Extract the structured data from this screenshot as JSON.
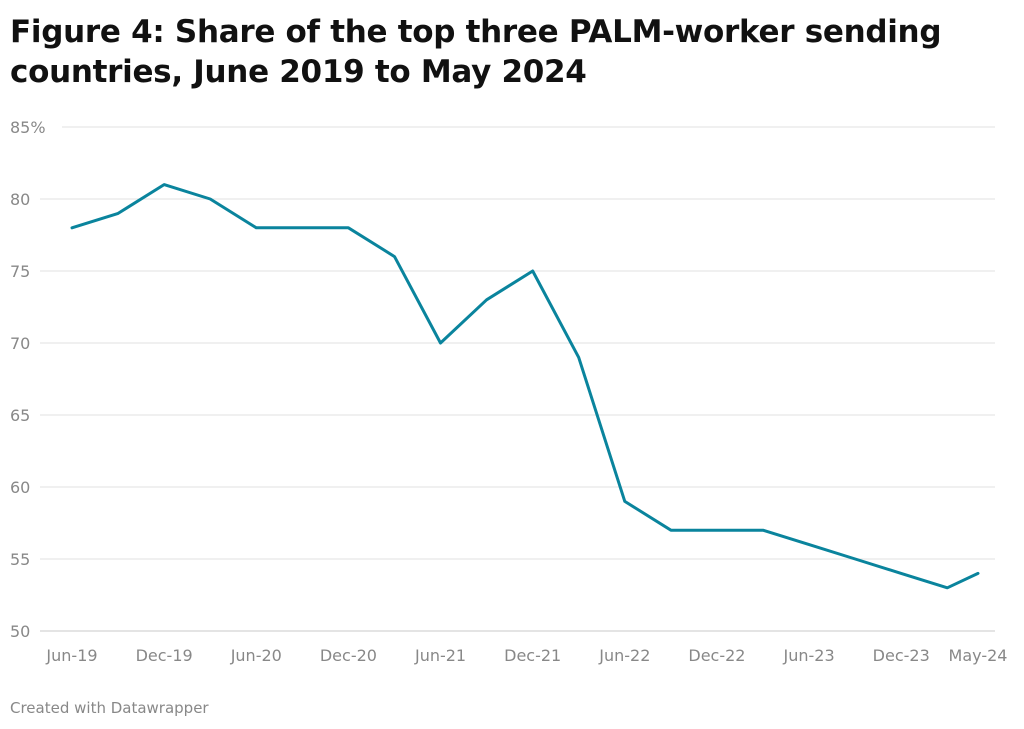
{
  "title": "Figure 4: Share of the top three PALM-worker sending countries, June 2019 to May 2024",
  "footer": "Created with Datawrapper",
  "chart_data": {
    "type": "line",
    "title": "Figure 4: Share of the top three PALM-worker sending countries, June 2019 to May 2024",
    "xlabel": "",
    "ylabel": "",
    "ylim": [
      50,
      85
    ],
    "yticks": [
      50,
      55,
      60,
      65,
      70,
      75,
      80,
      85
    ],
    "ytick_labels": [
      "50",
      "55",
      "60",
      "65",
      "70",
      "75",
      "80",
      "85%"
    ],
    "xlim": [
      "2019-06",
      "2024-05"
    ],
    "xtick_labels": [
      "Jun-19",
      "Dec-19",
      "Jun-20",
      "Dec-20",
      "Jun-21",
      "Dec-21",
      "Jun-22",
      "Dec-22",
      "Jun-23",
      "Dec-23",
      "May-24"
    ],
    "xticks": [
      "2019-06",
      "2019-12",
      "2020-06",
      "2020-12",
      "2021-06",
      "2021-12",
      "2022-06",
      "2022-12",
      "2023-06",
      "2023-12",
      "2024-05"
    ],
    "grid": true,
    "line_color": "#0a849d",
    "x": [
      "2019-06",
      "2019-09",
      "2019-12",
      "2020-03",
      "2020-06",
      "2020-09",
      "2020-12",
      "2021-03",
      "2021-06",
      "2021-09",
      "2021-12",
      "2022-03",
      "2022-06",
      "2022-09",
      "2022-12",
      "2023-03",
      "2023-06",
      "2023-09",
      "2023-12",
      "2024-03",
      "2024-05"
    ],
    "values": [
      78,
      79,
      81,
      80,
      78,
      78,
      78,
      76,
      70,
      73,
      75,
      69,
      59,
      57,
      57,
      57,
      56,
      55,
      54,
      53,
      54
    ]
  }
}
